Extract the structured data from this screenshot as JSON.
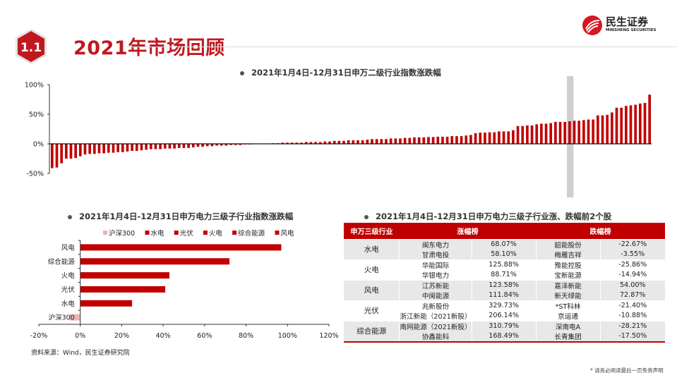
{
  "header": {
    "badge": "1.1",
    "title": "2021年市场回顾",
    "logo_cn": "民生证券",
    "logo_en": "MINSHENG SECURITIES",
    "accent": "#c0181f"
  },
  "chart_data": [
    {
      "type": "bar",
      "title": "2021年1月4日-12月31日申万二级行业指数涨跌幅",
      "ylim": [
        -50,
        100
      ],
      "yticks": [
        "100%",
        "50%",
        "0%",
        "-50%"
      ],
      "ytick_values": [
        100,
        50,
        0,
        -50
      ],
      "grid": false,
      "bar_color": "#c00000",
      "highlight_color": "#cfcfcf",
      "highlight_index": 110,
      "values": [
        -41,
        -40,
        -33,
        -25,
        -25,
        -24,
        -21,
        -18,
        -17,
        -17,
        -16,
        -16,
        -15,
        -15,
        -14,
        -14,
        -13,
        -12,
        -12,
        -11,
        -10,
        -9,
        -9,
        -9,
        -8,
        -8,
        -8,
        -7,
        -7,
        -7,
        -6,
        -5,
        -5,
        -4,
        -4,
        -3,
        -3,
        -3,
        -2,
        -2,
        -2,
        -1,
        -1,
        0,
        0,
        0,
        0,
        1,
        1,
        2,
        2,
        2,
        2,
        2,
        3,
        3,
        3,
        3,
        4,
        4,
        5,
        5,
        5,
        6,
        6,
        6,
        6,
        7,
        8,
        8,
        8,
        8,
        9,
        9,
        9,
        10,
        10,
        11,
        11,
        11,
        11.5,
        11.5,
        12,
        12,
        12,
        13,
        13,
        13,
        14,
        15,
        18,
        19,
        19,
        19.5,
        19.5,
        21,
        21,
        21,
        23,
        30,
        30,
        31,
        31,
        33,
        34,
        34,
        35,
        37,
        37,
        37,
        38,
        39,
        39,
        40,
        41,
        41,
        48,
        48,
        49,
        53,
        61,
        61,
        64,
        65,
        66,
        68,
        69,
        83
      ]
    },
    {
      "type": "bar",
      "orientation": "horizontal",
      "title": "2021年1月4日-12月31日申万电力三级子行业指数涨跌幅",
      "categories": [
        "风电",
        "综合能源",
        "火电",
        "光伏",
        "水电",
        "沪深300"
      ],
      "values": [
        97,
        72,
        43,
        41,
        25,
        -5.2
      ],
      "colors": [
        "#c00000",
        "#c00000",
        "#c00000",
        "#c00000",
        "#c00000",
        "#e8b4b8"
      ],
      "legend": [
        "沪深300",
        "水电",
        "光伏",
        "火电",
        "综合能源",
        "风电"
      ],
      "legend_colors": [
        "#e8b4b8",
        "#c00000",
        "#c00000",
        "#c00000",
        "#c00000",
        "#c00000"
      ],
      "legend_position": "top",
      "xlim": [
        -20,
        120
      ],
      "xticks": [
        "-20%",
        "0%",
        "20%",
        "40%",
        "60%",
        "80%",
        "100%",
        "120%"
      ],
      "xtick_values": [
        -20,
        0,
        20,
        40,
        60,
        80,
        100,
        120
      ]
    }
  ],
  "table": {
    "title": "2021年1月4日-12月31日申万电力三级子行业涨、跌幅前2个股",
    "headers": [
      "申万三级行业",
      "涨幅榜",
      "跌幅榜"
    ],
    "groups": [
      {
        "industry": "水电",
        "rows": [
          [
            "闽东电力",
            "68.07%",
            "韶能股份",
            "-22.67%"
          ],
          [
            "甘肃电投",
            "58.10%",
            "梅雁吉祥",
            "-3.55%"
          ]
        ]
      },
      {
        "industry": "火电",
        "rows": [
          [
            "华能国际",
            "125.88%",
            "豫能控股",
            "-25.86%"
          ],
          [
            "华银电力",
            "88.71%",
            "宝新能源",
            "-14.94%"
          ]
        ]
      },
      {
        "industry": "风电",
        "rows": [
          [
            "江苏新能",
            "123.58%",
            "嘉泽新能",
            "54.00%"
          ],
          [
            "中闽能源",
            "111.84%",
            "新天绿能",
            "72.87%"
          ]
        ]
      },
      {
        "industry": "光伏",
        "rows": [
          [
            "兆新股份",
            "329.73%",
            "*ST科林",
            "-21.40%"
          ],
          [
            "浙江新能（2021新股）",
            "206.14%",
            "京运通",
            "-10.88%"
          ]
        ]
      },
      {
        "industry": "综合能源",
        "rows": [
          [
            "南网能源（2021新股）",
            "310.79%",
            "深南电A",
            "-28.21%"
          ],
          [
            "协鑫能科",
            "168.49%",
            "长青集团",
            "-17.50%"
          ]
        ]
      }
    ]
  },
  "source": "资料来源：Wind，民生证券研究院",
  "disclaimer": "* 请务必阅读最后一页免责声明"
}
